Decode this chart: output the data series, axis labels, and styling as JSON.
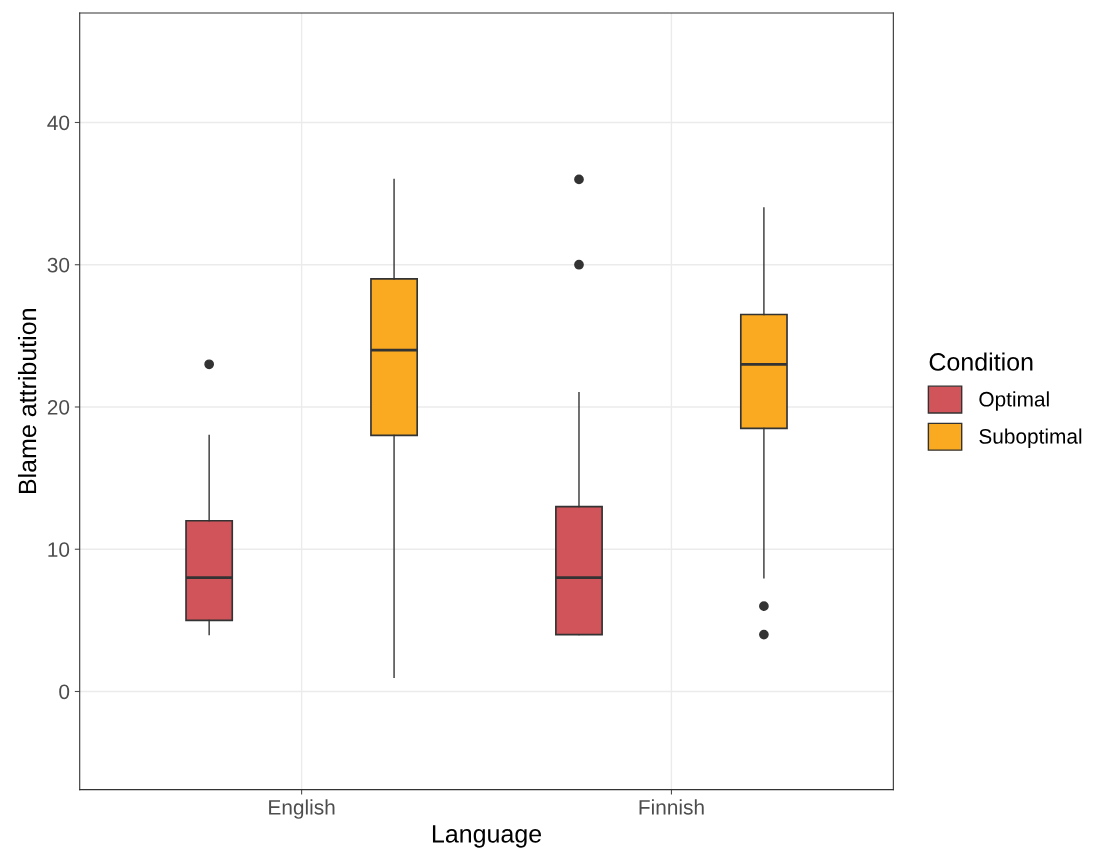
{
  "chart_data": {
    "type": "box",
    "xlabel": "Language",
    "ylabel": "Blame attribution",
    "legend_title": "Condition",
    "categories": [
      "English",
      "Finnish"
    ],
    "series": [
      {
        "name": "Optimal",
        "color": "#d1545a",
        "boxes": [
          {
            "low": 4,
            "q1": 5,
            "median": 8,
            "q3": 12,
            "high": 18,
            "outliers": [
              23
            ]
          },
          {
            "low": 4,
            "q1": 4,
            "median": 8,
            "q3": 13,
            "high": 21,
            "outliers": [
              30,
              36
            ]
          }
        ]
      },
      {
        "name": "Suboptimal",
        "color": "#f9aa21",
        "boxes": [
          {
            "low": 1,
            "q1": 18,
            "median": 24,
            "q3": 29,
            "high": 36
          },
          {
            "low": 8,
            "q1": 18.5,
            "median": 23,
            "q3": 26.5,
            "high": 34,
            "outliers": [
              4,
              6
            ]
          }
        ]
      }
    ],
    "ylim": [
      -6.9,
      47.7
    ],
    "yticks": [
      0,
      10,
      20,
      30,
      40
    ],
    "grid": true,
    "legend": "right"
  }
}
